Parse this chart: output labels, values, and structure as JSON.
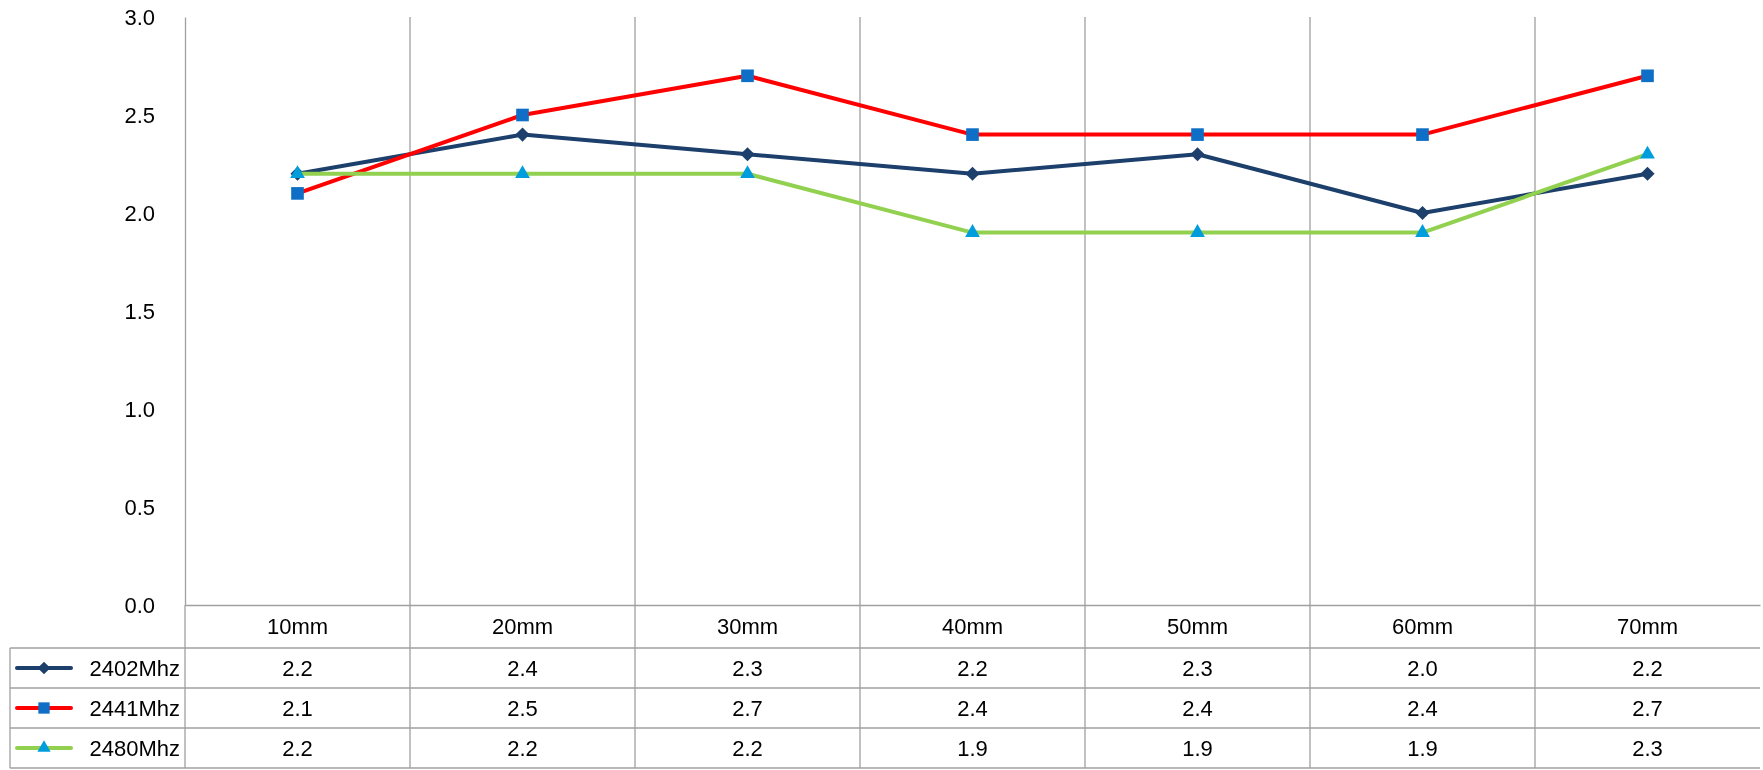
{
  "chart_data": {
    "type": "line",
    "categories": [
      "10mm",
      "20mm",
      "30mm",
      "40mm",
      "50mm",
      "60mm",
      "70mm"
    ],
    "series": [
      {
        "name": "2402Mhz",
        "color": "#1c3f6b",
        "marker": "diamond",
        "values": [
          2.2,
          2.4,
          2.3,
          2.2,
          2.3,
          2.0,
          2.2
        ],
        "value_labels": [
          "2.2",
          "2.4",
          "2.3",
          "2.2",
          "2.3",
          "2.0",
          "2.2"
        ]
      },
      {
        "name": "2441Mhz",
        "color": "#ff0000",
        "colors": [
          "#0f6fc6",
          "#0f6fc6",
          "#0f6fc6",
          "#0f6fc6",
          "#0f6fc6",
          "#0f6fc6",
          "#0f6fc6"
        ],
        "marker": "square",
        "values": [
          2.1,
          2.5,
          2.7,
          2.4,
          2.4,
          2.4,
          2.7
        ],
        "value_labels": [
          "2.1",
          "2.5",
          "2.7",
          "2.4",
          "2.4",
          "2.4",
          "2.7"
        ]
      },
      {
        "name": "2480Mhz",
        "color": "#92d050",
        "colors": [
          "#009ddc",
          "#009ddc",
          "#009ddc",
          "#009ddc",
          "#009ddc",
          "#009ddc",
          "#009ddc"
        ],
        "marker": "triangle",
        "values": [
          2.2,
          2.2,
          2.2,
          1.9,
          1.9,
          1.9,
          2.3
        ],
        "value_labels": [
          "2.2",
          "2.2",
          "2.2",
          "1.9",
          "1.9",
          "1.9",
          "2.3"
        ]
      }
    ],
    "ylim": [
      0,
      3
    ],
    "yticks": [
      {
        "value": 0,
        "label": "0.0"
      },
      0.5,
      {
        "value": 1,
        "label": "1.0"
      },
      1.5,
      {
        "value": 2,
        "label": "2.0"
      },
      2.5,
      {
        "value": 3,
        "label": "3.0"
      }
    ],
    "grid": "x",
    "legend": "bottom"
  }
}
